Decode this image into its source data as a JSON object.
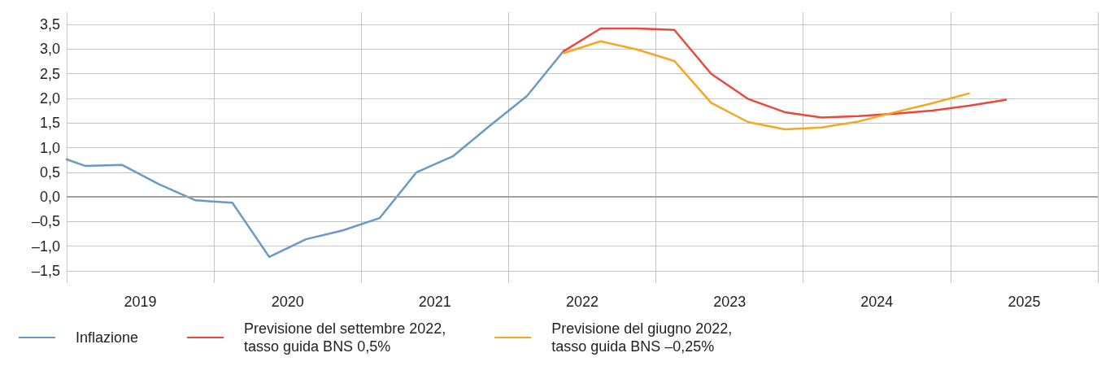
{
  "chart_data": {
    "type": "line",
    "x": [
      2019,
      2019.125,
      2019.375,
      2019.625,
      2019.875,
      2020.125,
      2020.375,
      2020.625,
      2020.875,
      2021.125,
      2021.375,
      2021.625,
      2021.875,
      2022.125,
      2022.375
    ],
    "series": [
      {
        "name": "Inflazione",
        "color": "#6a9ac4",
        "values": [
          0.76,
          0.63,
          0.65,
          0.26,
          -0.07,
          -0.12,
          -1.22,
          -0.86,
          -0.68,
          -0.43,
          0.5,
          0.83,
          1.45,
          2.05,
          2.97
        ]
      },
      {
        "name": "Previsione del settembre 2022,\ntasso guida BNS 0,5%",
        "color": "#e8493a",
        "x": [
          2022.375,
          2022.625,
          2022.875,
          2023.125,
          2023.375,
          2023.625,
          2023.875,
          2024.125,
          2024.375,
          2024.625,
          2024.875,
          2025.125,
          2025.375
        ],
        "values": [
          2.96,
          3.42,
          3.42,
          3.39,
          2.5,
          1.99,
          1.72,
          1.61,
          1.64,
          1.69,
          1.75,
          1.85,
          1.97
        ]
      },
      {
        "name": "Previsione del giugno 2022,\ntasso guida BNS –0,25%",
        "color": "#f5a623",
        "x": [
          2022.375,
          2022.625,
          2022.875,
          2023.125,
          2023.375,
          2023.625,
          2023.875,
          2024.125,
          2024.375,
          2024.625,
          2024.875,
          2025.125
        ],
        "values": [
          2.92,
          3.16,
          2.99,
          2.76,
          1.91,
          1.52,
          1.37,
          1.41,
          1.53,
          1.72,
          1.9,
          2.1
        ]
      }
    ],
    "xlim": [
      2019,
      2026
    ],
    "xticks": [
      {
        "value": 2019,
        "label": null
      },
      {
        "value": 2019.5,
        "label": "2019"
      },
      {
        "value": 2020,
        "label": null
      },
      {
        "value": 2020.5,
        "label": "2020"
      },
      {
        "value": 2021,
        "label": null
      },
      {
        "value": 2021.5,
        "label": "2021"
      },
      {
        "value": 2022,
        "label": null
      },
      {
        "value": 2022.5,
        "label": "2022"
      },
      {
        "value": 2023,
        "label": null
      },
      {
        "value": 2023.5,
        "label": "2023"
      },
      {
        "value": 2024,
        "label": null
      },
      {
        "value": 2024.5,
        "label": "2024"
      },
      {
        "value": 2025,
        "label": null
      },
      {
        "value": 2025.5,
        "label": "2025"
      },
      {
        "value": 2026,
        "label": null
      }
    ],
    "ylim": [
      -1.75,
      3.75
    ],
    "yticks": [
      {
        "value": -1.5,
        "label": "–1,5"
      },
      {
        "value": -1,
        "label": "–1,0"
      },
      {
        "value": -0.5,
        "label": "–0,5"
      },
      {
        "value": 0,
        "label": "0,0"
      },
      {
        "value": 0.5,
        "label": "0,5"
      },
      {
        "value": 1,
        "label": "1,0"
      },
      {
        "value": 1.5,
        "label": "1,5"
      },
      {
        "value": 2,
        "label": "2,0"
      },
      {
        "value": 2.5,
        "label": "2,5"
      },
      {
        "value": 3,
        "label": "3,0"
      },
      {
        "value": 3.5,
        "label": "3,5"
      }
    ],
    "ref_lines": [
      {
        "axis": "y",
        "value": 0,
        "color": "#a0a0a0"
      }
    ],
    "grid": true,
    "legend": "bottom",
    "marker": "none",
    "line_style": "solid"
  }
}
